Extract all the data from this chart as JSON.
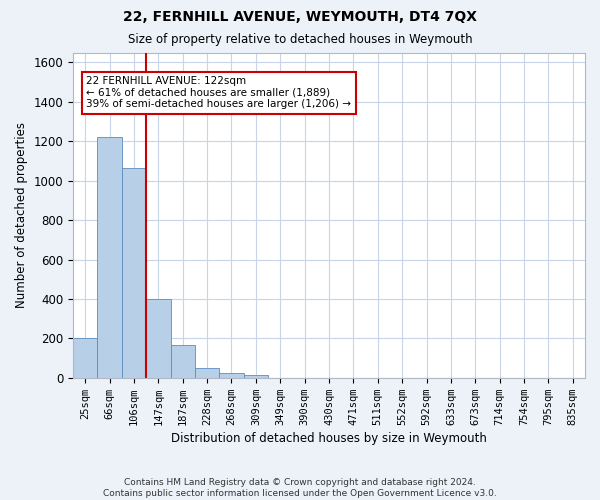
{
  "title": "22, FERNHILL AVENUE, WEYMOUTH, DT4 7QX",
  "subtitle": "Size of property relative to detached houses in Weymouth",
  "xlabel": "Distribution of detached houses by size in Weymouth",
  "ylabel": "Number of detached properties",
  "categories": [
    "25sqm",
    "66sqm",
    "106sqm",
    "147sqm",
    "187sqm",
    "228sqm",
    "268sqm",
    "309sqm",
    "349sqm",
    "390sqm",
    "430sqm",
    "471sqm",
    "511sqm",
    "552sqm",
    "592sqm",
    "633sqm",
    "673sqm",
    "714sqm",
    "754sqm",
    "795sqm",
    "835sqm"
  ],
  "bar_values": [
    200,
    1220,
    1065,
    400,
    165,
    50,
    25,
    15,
    0,
    0,
    0,
    0,
    0,
    0,
    0,
    0,
    0,
    0,
    0,
    0,
    0
  ],
  "bar_color": "#b8cfe8",
  "bar_edge_color": "#5b8dc0",
  "vline_x": 2.5,
  "vline_color": "#cc0000",
  "annotation_text": "22 FERNHILL AVENUE: 122sqm\n← 61% of detached houses are smaller (1,889)\n39% of semi-detached houses are larger (1,206) →",
  "annotation_box_color": "#cc0000",
  "ylim": [
    0,
    1650
  ],
  "yticks": [
    0,
    200,
    400,
    600,
    800,
    1000,
    1200,
    1400,
    1600
  ],
  "footer": "Contains HM Land Registry data © Crown copyright and database right 2024.\nContains public sector information licensed under the Open Government Licence v3.0.",
  "bg_color": "#edf2f9",
  "plot_bg_color": "#ffffff",
  "grid_color": "#c8d4e8"
}
